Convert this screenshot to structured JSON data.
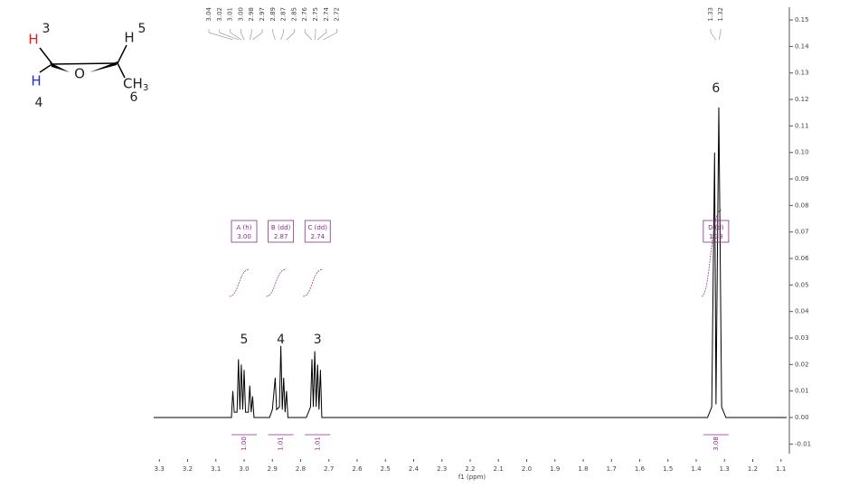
{
  "chart_data": {
    "type": "line",
    "x_label": "f1 (ppm)",
    "xlim": [
      3.32,
      1.08
    ],
    "ylim": [
      -0.015,
      0.155
    ],
    "xticks": [
      3.3,
      3.2,
      3.1,
      {
        "value": 3,
        "label": "3.0"
      },
      2.9,
      2.8,
      2.7,
      2.6,
      2.5,
      2.4,
      2.3,
      2.2,
      2.1,
      {
        "value": 2,
        "label": "2.0"
      },
      1.9,
      1.8,
      1.7,
      1.6,
      1.5,
      1.4,
      1.3,
      1.2,
      1.1
    ],
    "yticks": [
      0.15,
      0.14,
      0.13,
      0.12,
      0.11,
      {
        "value": 0.1,
        "label": "0.10"
      },
      0.09,
      0.08,
      0.07,
      0.06,
      0.05,
      0.04,
      0.03,
      0.02,
      0.01,
      {
        "value": 0,
        "label": "0.00"
      },
      -0.01
    ],
    "series": [
      {
        "color": "#000000",
        "x": [
          3.32,
          3.06,
          3.045,
          3.04,
          3.035,
          3.025,
          3.02,
          3.015,
          3.01,
          3.005,
          3.0,
          2.995,
          2.985,
          2.98,
          2.975,
          2.97,
          2.965,
          2.91,
          2.9,
          2.89,
          2.885,
          2.875,
          2.87,
          2.865,
          2.86,
          2.855,
          2.85,
          2.845,
          2.78,
          2.765,
          2.76,
          2.755,
          2.75,
          2.745,
          2.74,
          2.735,
          2.73,
          2.725,
          1.36,
          1.345,
          1.335,
          1.33,
          1.32,
          1.31,
          1.295,
          1.08
        ],
        "values": [
          0,
          0,
          0,
          0.01,
          0.002,
          0.002,
          0.022,
          0.003,
          0.02,
          0.003,
          0.018,
          0.002,
          0.002,
          0.012,
          0.002,
          0.008,
          0,
          0,
          0.003,
          0.015,
          0.003,
          0.004,
          0.027,
          0.003,
          0.015,
          0.002,
          0.01,
          0,
          0,
          0.004,
          0.022,
          0.004,
          0.025,
          0.004,
          0.02,
          0.003,
          0.018,
          0,
          0,
          0.004,
          0.1,
          0.005,
          0.117,
          0.004,
          0,
          0
        ]
      }
    ],
    "peak_labels": [
      {
        "value": 3.04,
        "label": "3.04"
      },
      {
        "value": 3.02,
        "label": "3.02"
      },
      {
        "value": 3.01,
        "label": "3.01"
      },
      {
        "value": 3,
        "label": "3.00"
      },
      {
        "value": 2.98,
        "label": "2.98"
      },
      {
        "value": 2.97,
        "label": "2.97"
      },
      {
        "value": 2.89,
        "label": "2.89"
      },
      {
        "value": 2.87,
        "label": "2.87"
      },
      {
        "value": 2.85,
        "label": "2.85"
      },
      {
        "value": 2.76,
        "label": "2.76"
      },
      {
        "value": 2.75,
        "label": "2.75"
      },
      {
        "value": 2.74,
        "label": "2.74"
      },
      {
        "value": 2.72,
        "label": "2.72"
      },
      {
        "value": 1.33,
        "label": "1.33"
      },
      {
        "value": 1.32,
        "label": "1.32"
      }
    ],
    "multiplets": [
      {
        "name": "A (h)",
        "shift": {
          "value": 3,
          "label": "3.00"
        },
        "integral": "1.00",
        "assignment": "5"
      },
      {
        "name": "B (dd)",
        "shift": {
          "value": 2.87,
          "label": "2.87"
        },
        "integral": "1.01",
        "assignment": "4"
      },
      {
        "name": "C (dd)",
        "shift": {
          "value": 2.74,
          "label": "2.74"
        },
        "integral": "1.01",
        "assignment": "3"
      },
      {
        "name": "D (d)",
        "shift": {
          "value": 1.33,
          "label": "1.33"
        },
        "integral": "3.08",
        "assignment": "6"
      }
    ]
  },
  "molecule": {
    "h3": "H",
    "n3": "3",
    "h5": "H",
    "n5": "5",
    "o": "O",
    "h4": "H",
    "n4": "4",
    "methyl": "CH",
    "methyl_sub": "3",
    "n6": "6"
  }
}
